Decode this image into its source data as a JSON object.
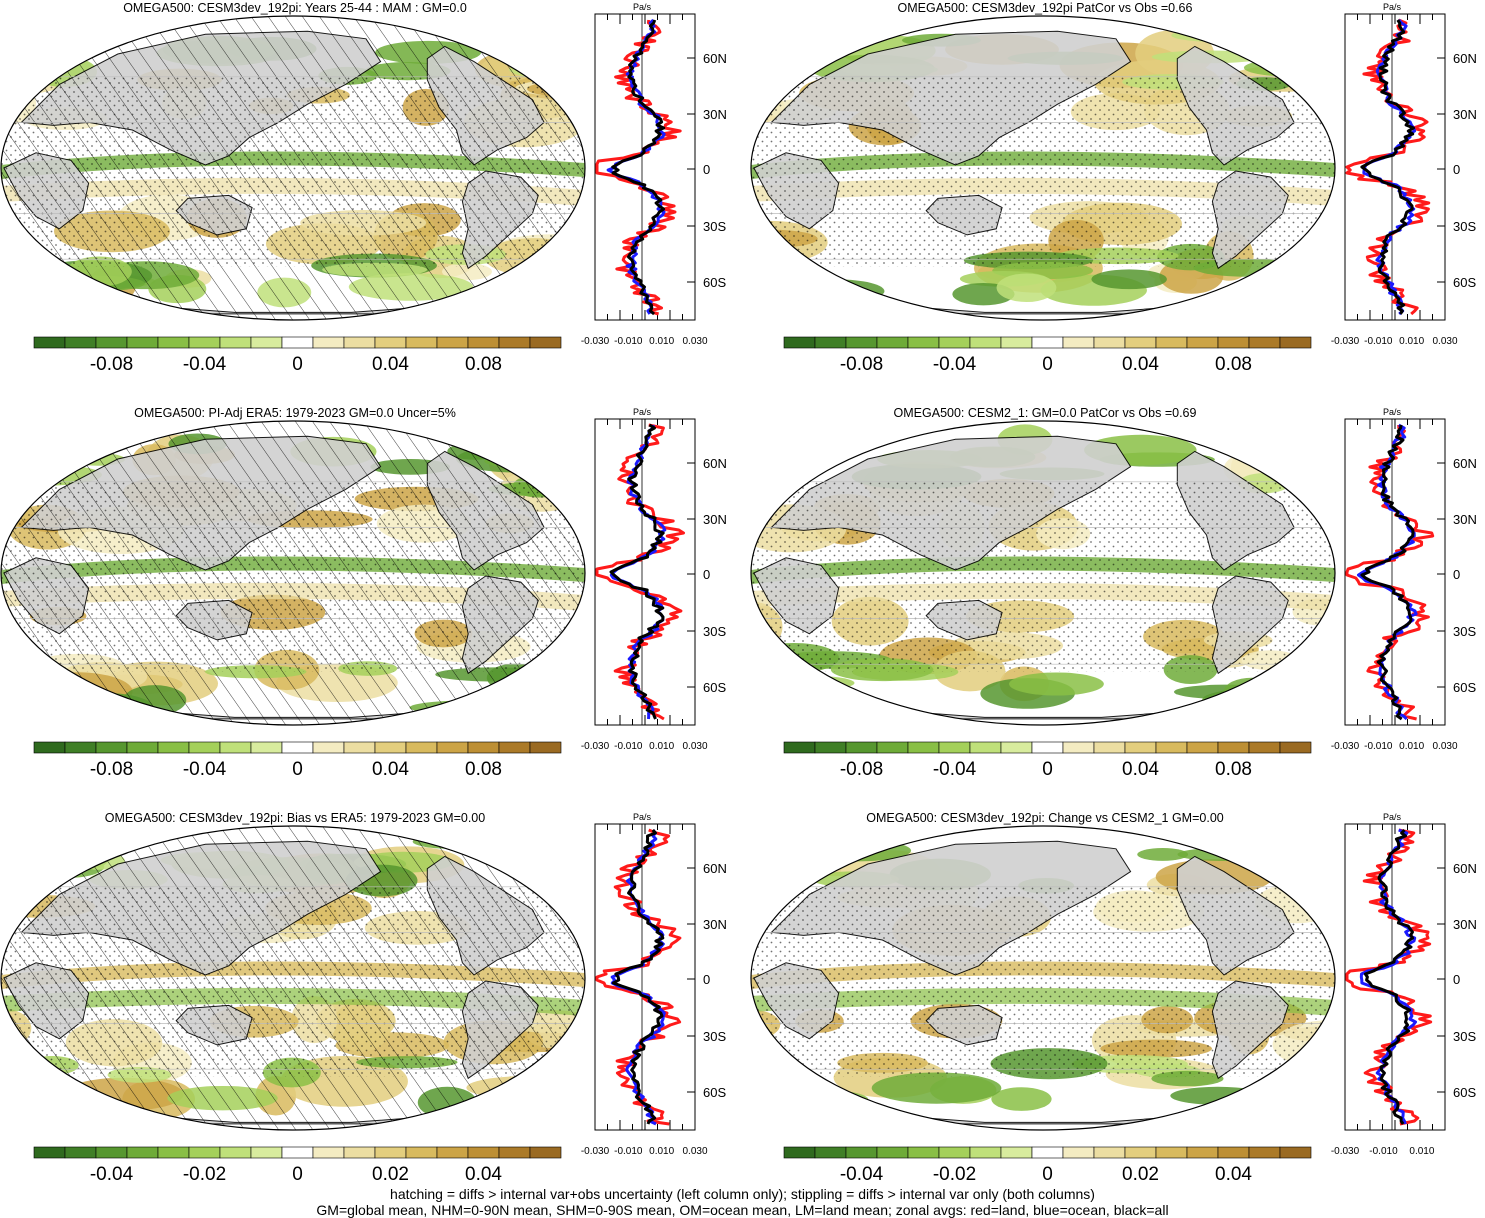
{
  "colors": {
    "land": "#d0d0d0",
    "ocean": "#ffffff",
    "coast": "#000000",
    "land_line": "#ff1a1a",
    "ocean_line": "#1a1aff",
    "all_line": "#000000",
    "colorbar": [
      "#2f6a1e",
      "#3f7f26",
      "#56972f",
      "#6eab38",
      "#89bf45",
      "#a4d05a",
      "#bfe07a",
      "#d8ec9e",
      "#ffffff",
      "#f4ecc2",
      "#ecdea2",
      "#e3ce7e",
      "#d8ba5e",
      "#cca446",
      "#bd8f34",
      "#ab7a28",
      "#9a6a22"
    ]
  },
  "footer": {
    "line1": "hatching = diffs > internal var+obs uncertainty (left column only); stippling = diffs > internal var only (both columns)",
    "line2": "GM=global mean, NHM=0-90N mean, SHM=0-90S mean, OM=ocean mean, LM=land mean; zonal avgs: red=land, blue=ocean, black=all"
  },
  "panels": [
    {
      "title": "OMEGA500: CESM3dev_192pi: Years 25-44 : MAM : GM=0.0",
      "hatched": true,
      "colorbar_labels": [
        "-0.08",
        "-0.04",
        "0",
        "0.04",
        "0.08"
      ],
      "profile": {
        "unit": "Pa/s",
        "lat_labels": [
          "60N",
          "30N",
          "0",
          "30S",
          "60S"
        ],
        "x_labels": [
          "-0.030",
          "-0.010",
          "0.010",
          "0.030"
        ]
      }
    },
    {
      "title": "OMEGA500: CESM3dev_192pi PatCor vs Obs =0.66",
      "hatched": false,
      "colorbar_labels": [
        "-0.08",
        "-0.04",
        "0",
        "0.04",
        "0.08"
      ],
      "profile": {
        "unit": "Pa/s",
        "lat_labels": [
          "60N",
          "30N",
          "0",
          "30S",
          "60S"
        ],
        "x_labels": [
          "-0.030",
          "-0.010",
          "0.010",
          "0.030"
        ]
      }
    },
    {
      "title": "OMEGA500: PI-Adj ERA5: 1979-2023 GM=0.0 Uncer=5%",
      "hatched": true,
      "colorbar_labels": [
        "-0.08",
        "-0.04",
        "0",
        "0.04",
        "0.08"
      ],
      "profile": {
        "unit": "Pa/s",
        "lat_labels": [
          "60N",
          "30N",
          "0",
          "30S",
          "60S"
        ],
        "x_labels": [
          "-0.030",
          "-0.010",
          "0.010",
          "0.030"
        ]
      }
    },
    {
      "title": "OMEGA500: CESM2_1: GM=0.0 PatCor vs Obs =0.69",
      "hatched": false,
      "colorbar_labels": [
        "-0.08",
        "-0.04",
        "0",
        "0.04",
        "0.08"
      ],
      "profile": {
        "unit": "Pa/s",
        "lat_labels": [
          "60N",
          "30N",
          "0",
          "30S",
          "60S"
        ],
        "x_labels": [
          "-0.030",
          "-0.010",
          "0.010",
          "0.030"
        ]
      }
    },
    {
      "title": "OMEGA500: CESM3dev_192pi: Bias vs ERA5: 1979-2023 GM=0.00",
      "hatched": true,
      "colorbar_labels": [
        "-0.04",
        "-0.02",
        "0",
        "0.02",
        "0.04"
      ],
      "profile": {
        "unit": "Pa/s",
        "lat_labels": [
          "60N",
          "30N",
          "0",
          "30S",
          "60S"
        ],
        "x_labels": [
          "-0.030",
          "-0.010",
          "0.010",
          "0.030"
        ]
      }
    },
    {
      "title": "OMEGA500: CESM3dev_192pi: Change vs CESM2_1 GM=0.00",
      "hatched": false,
      "colorbar_labels": [
        "-0.04",
        "-0.02",
        "0",
        "0.02",
        "0.04"
      ],
      "profile": {
        "unit": "Pa/s",
        "lat_labels": [
          "60N",
          "30N",
          "0",
          "30S",
          "60S"
        ],
        "x_labels": [
          "-0.030",
          "-0.010",
          "0.010"
        ]
      }
    }
  ]
}
